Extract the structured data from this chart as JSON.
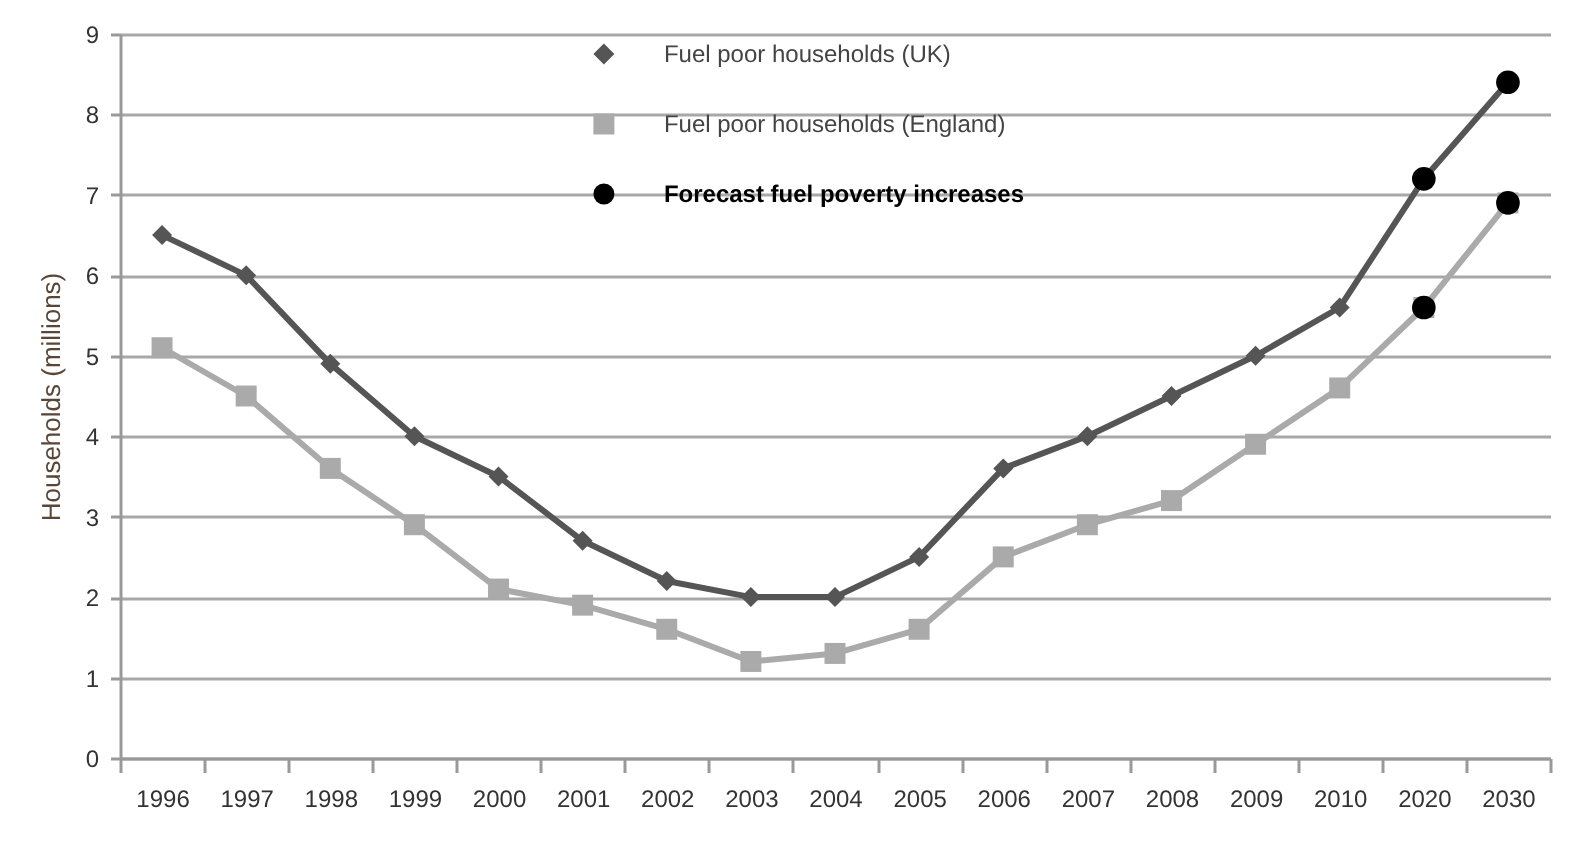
{
  "chart_data": {
    "type": "line",
    "ylabel": "Households (millions)",
    "categories": [
      "1996",
      "1997",
      "1998",
      "1999",
      "2000",
      "2001",
      "2002",
      "2003",
      "2004",
      "2005",
      "2006",
      "2007",
      "2008",
      "2009",
      "2010",
      "2020",
      "2030"
    ],
    "ylim": [
      0,
      9
    ],
    "yticks": [
      0,
      1,
      2,
      3,
      4,
      5,
      6,
      7,
      8,
      9
    ],
    "grid": "y",
    "legend": "top",
    "line_style": "solid",
    "series": [
      {
        "name": "Fuel poor households (UK)",
        "color": "#555555",
        "marker": "diamond",
        "values": [
          6.5,
          6.0,
          4.9,
          4.0,
          3.5,
          2.7,
          2.2,
          2.0,
          2.0,
          2.5,
          3.6,
          4.0,
          4.5,
          5.0,
          5.6,
          7.2,
          8.4
        ]
      },
      {
        "name": "Fuel poor households (England)",
        "color": "#aaaaaa",
        "marker": "square",
        "values": [
          5.1,
          4.5,
          3.6,
          2.9,
          2.1,
          1.9,
          1.6,
          1.2,
          1.3,
          1.6,
          2.5,
          2.9,
          3.2,
          3.9,
          4.6,
          5.6,
          6.9
        ]
      },
      {
        "name": "Forecast fuel poverty increases",
        "type": "scatter",
        "color": "#000000",
        "marker": "circle",
        "values": [
          null,
          null,
          null,
          null,
          null,
          null,
          null,
          null,
          null,
          null,
          null,
          null,
          null,
          null,
          null,
          7.2,
          8.4
        ]
      },
      {
        "type": "scatter",
        "color": "#000000",
        "marker": "circle",
        "values": [
          null,
          null,
          null,
          null,
          null,
          null,
          null,
          null,
          null,
          null,
          null,
          null,
          null,
          null,
          null,
          5.6,
          6.9
        ]
      }
    ]
  }
}
